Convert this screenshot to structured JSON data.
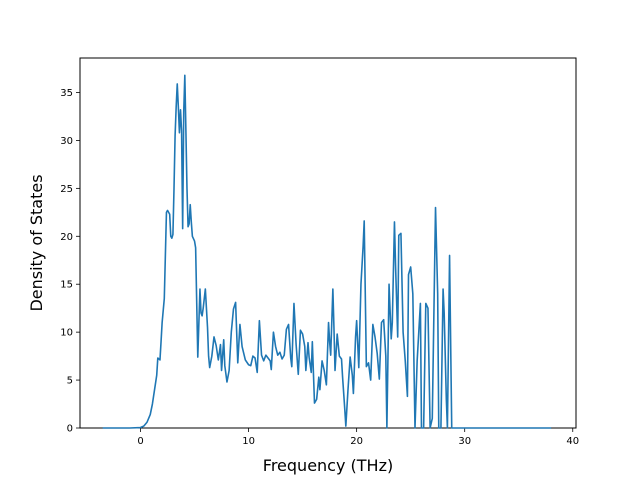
{
  "chart_data": {
    "type": "line",
    "title": "",
    "xlabel": "Frequency (THz)",
    "ylabel": "Density of States",
    "xlim": [
      -5.6,
      40.3
    ],
    "ylim": [
      0,
      38.6
    ],
    "xticks": [
      0,
      10,
      20,
      30,
      40
    ],
    "yticks": [
      0,
      5,
      10,
      15,
      20,
      25,
      30,
      35
    ],
    "grid": false,
    "legend": "none",
    "series": [
      {
        "color": "#1f77b4",
        "points": [
          [
            -3.5,
            0
          ],
          [
            -1.0,
            0
          ],
          [
            0.0,
            0.05
          ],
          [
            0.3,
            0.2
          ],
          [
            0.6,
            0.6
          ],
          [
            0.9,
            1.4
          ],
          [
            1.1,
            2.5
          ],
          [
            1.3,
            4.0
          ],
          [
            1.5,
            5.5
          ],
          [
            1.6,
            7.3
          ],
          [
            1.8,
            7.1
          ],
          [
            1.9,
            9.0
          ],
          [
            2.0,
            11.0
          ],
          [
            2.2,
            13.5
          ],
          [
            2.3,
            18.0
          ],
          [
            2.4,
            22.5
          ],
          [
            2.5,
            22.7
          ],
          [
            2.7,
            22.3
          ],
          [
            2.8,
            20.0
          ],
          [
            2.9,
            19.8
          ],
          [
            3.0,
            20.2
          ],
          [
            3.1,
            25.0
          ],
          [
            3.2,
            30.5
          ],
          [
            3.3,
            33.5
          ],
          [
            3.4,
            35.9
          ],
          [
            3.5,
            33.5
          ],
          [
            3.6,
            30.8
          ],
          [
            3.7,
            33.2
          ],
          [
            3.8,
            31.0
          ],
          [
            3.9,
            20.8
          ],
          [
            4.0,
            33.0
          ],
          [
            4.1,
            36.8
          ],
          [
            4.2,
            31.0
          ],
          [
            4.3,
            25.0
          ],
          [
            4.4,
            21.0
          ],
          [
            4.5,
            21.3
          ],
          [
            4.6,
            23.3
          ],
          [
            4.7,
            21.5
          ],
          [
            4.8,
            20.0
          ],
          [
            5.0,
            19.5
          ],
          [
            5.1,
            18.8
          ],
          [
            5.3,
            7.4
          ],
          [
            5.5,
            14.5
          ],
          [
            5.6,
            12.0
          ],
          [
            5.7,
            11.7
          ],
          [
            5.8,
            12.5
          ],
          [
            6.0,
            14.5
          ],
          [
            6.2,
            10.5
          ],
          [
            6.3,
            7.5
          ],
          [
            6.4,
            6.3
          ],
          [
            6.6,
            7.5
          ],
          [
            6.8,
            9.5
          ],
          [
            7.0,
            8.6
          ],
          [
            7.2,
            7.1
          ],
          [
            7.4,
            8.7
          ],
          [
            7.5,
            6.0
          ],
          [
            7.7,
            9.2
          ],
          [
            7.8,
            6.5
          ],
          [
            8.0,
            4.8
          ],
          [
            8.2,
            6.0
          ],
          [
            8.4,
            10.0
          ],
          [
            8.6,
            12.4
          ],
          [
            8.8,
            13.1
          ],
          [
            9.0,
            6.8
          ],
          [
            9.2,
            10.8
          ],
          [
            9.4,
            8.5
          ],
          [
            9.7,
            7.1
          ],
          [
            10.0,
            6.6
          ],
          [
            10.2,
            6.5
          ],
          [
            10.4,
            7.5
          ],
          [
            10.6,
            7.3
          ],
          [
            10.8,
            5.8
          ],
          [
            11.0,
            11.2
          ],
          [
            11.2,
            7.6
          ],
          [
            11.4,
            7.0
          ],
          [
            11.6,
            7.6
          ],
          [
            11.8,
            7.3
          ],
          [
            12.0,
            7.0
          ],
          [
            12.1,
            6.1
          ],
          [
            12.3,
            10.0
          ],
          [
            12.5,
            8.5
          ],
          [
            12.7,
            7.6
          ],
          [
            12.9,
            7.9
          ],
          [
            13.1,
            7.2
          ],
          [
            13.3,
            7.6
          ],
          [
            13.5,
            10.3
          ],
          [
            13.7,
            10.8
          ],
          [
            13.9,
            7.3
          ],
          [
            14.0,
            6.4
          ],
          [
            14.2,
            13.0
          ],
          [
            14.4,
            8.7
          ],
          [
            14.6,
            5.6
          ],
          [
            14.8,
            10.2
          ],
          [
            15.0,
            9.8
          ],
          [
            15.2,
            8.5
          ],
          [
            15.3,
            6.0
          ],
          [
            15.5,
            8.9
          ],
          [
            15.6,
            7.4
          ],
          [
            15.8,
            5.8
          ],
          [
            15.9,
            9.0
          ],
          [
            16.1,
            2.6
          ],
          [
            16.3,
            3.0
          ],
          [
            16.5,
            5.3
          ],
          [
            16.6,
            4.0
          ],
          [
            16.8,
            7.0
          ],
          [
            17.0,
            6.0
          ],
          [
            17.2,
            4.5
          ],
          [
            17.4,
            11.0
          ],
          [
            17.5,
            9.0
          ],
          [
            17.6,
            7.6
          ],
          [
            17.8,
            14.5
          ],
          [
            17.9,
            10.5
          ],
          [
            18.0,
            6.0
          ],
          [
            18.2,
            9.8
          ],
          [
            18.4,
            7.5
          ],
          [
            18.6,
            7.2
          ],
          [
            18.7,
            5.3
          ],
          [
            18.9,
            2.0
          ],
          [
            19.0,
            0.2
          ],
          [
            19.2,
            4.0
          ],
          [
            19.4,
            7.4
          ],
          [
            19.6,
            5.5
          ],
          [
            19.7,
            3.6
          ],
          [
            19.9,
            9.5
          ],
          [
            20.0,
            11.2
          ],
          [
            20.2,
            6.3
          ],
          [
            20.4,
            15.0
          ],
          [
            20.6,
            19.0
          ],
          [
            20.7,
            21.6
          ],
          [
            20.9,
            6.4
          ],
          [
            21.1,
            6.8
          ],
          [
            21.3,
            5.0
          ],
          [
            21.5,
            10.8
          ],
          [
            21.7,
            9.5
          ],
          [
            21.9,
            7.8
          ],
          [
            22.1,
            5.1
          ],
          [
            22.3,
            11.0
          ],
          [
            22.5,
            11.3
          ],
          [
            22.7,
            7.5
          ],
          [
            22.8,
            0.0
          ],
          [
            23.0,
            15.0
          ],
          [
            23.2,
            9.3
          ],
          [
            23.3,
            11.0
          ],
          [
            23.5,
            21.5
          ],
          [
            23.6,
            17.0
          ],
          [
            23.8,
            9.5
          ],
          [
            23.9,
            20.1
          ],
          [
            24.1,
            20.3
          ],
          [
            24.3,
            10.0
          ],
          [
            24.5,
            7.0
          ],
          [
            24.7,
            3.3
          ],
          [
            24.8,
            16.0
          ],
          [
            25.0,
            16.8
          ],
          [
            25.2,
            14.0
          ],
          [
            25.4,
            0.0
          ],
          [
            25.6,
            7.0
          ],
          [
            25.9,
            13.0
          ],
          [
            26.0,
            0.0
          ],
          [
            26.2,
            0.0
          ],
          [
            26.4,
            13.0
          ],
          [
            26.6,
            12.5
          ],
          [
            26.8,
            0.0
          ],
          [
            27.0,
            1.0
          ],
          [
            27.3,
            23.0
          ],
          [
            27.5,
            14.0
          ],
          [
            27.6,
            0.0
          ],
          [
            27.8,
            0.0
          ],
          [
            28.0,
            14.5
          ],
          [
            28.1,
            12.0
          ],
          [
            28.3,
            3.0
          ],
          [
            28.4,
            0.0
          ],
          [
            28.6,
            18.0
          ],
          [
            28.8,
            0.0
          ],
          [
            29.0,
            0.0
          ],
          [
            30.0,
            0
          ],
          [
            35.0,
            0
          ],
          [
            38.0,
            0
          ]
        ]
      }
    ]
  }
}
